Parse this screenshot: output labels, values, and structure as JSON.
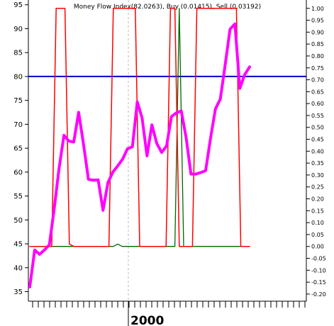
{
  "chart_data": {
    "type": "line",
    "title": "Money Flow Index(82.0263), Buy (0.01415), Sell (0.03192)",
    "xlabel": "",
    "ylabel": "",
    "x_tick_label": "2000",
    "left_axis": {
      "range": [
        33,
        96
      ],
      "ticks": [
        35,
        40,
        45,
        50,
        55,
        60,
        65,
        70,
        75,
        80,
        85,
        90,
        95
      ]
    },
    "right_axis": {
      "range": [
        -0.23,
        1.035
      ],
      "ticks": [
        "1.00",
        "0.95",
        "0.90",
        "0.85",
        "0.80",
        "0.75",
        "0.70",
        "0.65",
        "0.60",
        "0.55",
        "0.50",
        "0.45",
        "0.40",
        "0.35",
        "0.30",
        "0.25",
        "0.20",
        "0.15",
        "0.10",
        "0.05",
        "0.00",
        "-0.05",
        "-0.10",
        "-0.15",
        "-0.20"
      ]
    },
    "grid": false,
    "reference_line": {
      "axis": "left",
      "value": 80,
      "color": "#0000cc"
    },
    "colors": {
      "mfi": "#ff00ff",
      "buy": "#ff0000",
      "sell": "#006600",
      "divider": "#bbbbbb"
    },
    "series": [
      {
        "name": "Money Flow Index",
        "axis": "left",
        "color": "#ff00ff",
        "values": [
          36.0,
          43.7,
          42.8,
          43.7,
          44.8,
          52.3,
          60.8,
          67.7,
          66.5,
          66.3,
          72.5,
          65.8,
          58.5,
          58.3,
          58.4,
          52.0,
          57.8,
          60.0,
          61.3,
          62.7,
          64.9,
          65.3,
          74.7,
          71.3,
          63.4,
          69.9,
          66.0,
          64.1,
          65.5,
          71.6,
          72.4,
          72.8,
          67.3,
          59.6,
          59.6,
          59.9,
          60.3,
          67.1,
          73.2,
          75.3,
          82.5,
          89.9,
          91.0,
          77.5,
          80.4,
          82.0
        ]
      },
      {
        "name": "Buy",
        "axis": "right",
        "color": "#ff0000",
        "values": [
          0.0,
          0.0,
          0.0,
          0.0,
          0.0,
          0.0,
          1.0,
          1.0,
          1.0,
          0.01,
          0.0,
          0.0,
          0.0,
          0.0,
          0.0,
          0.0,
          0.0,
          0.0,
          0.0,
          1.0,
          1.0,
          1.0,
          1.0,
          1.0,
          1.0,
          0.0,
          0.0,
          0.0,
          0.0,
          0.0,
          0.0,
          0.0,
          1.0,
          1.0,
          0.0,
          0.0,
          0.0,
          0.0,
          1.0,
          1.0,
          1.0,
          1.0,
          1.0,
          1.0,
          1.0,
          1.0,
          1.0,
          1.0,
          0.0,
          0.0,
          0.0
        ]
      },
      {
        "name": "Sell",
        "axis": "right",
        "color": "#006600",
        "values": [
          0.0,
          0.0,
          0.0,
          0.0,
          0.0,
          0.0,
          0.0,
          0.0,
          0.0,
          0.0,
          0.0,
          0.0,
          0.0,
          0.0,
          0.0,
          0.0,
          0.0,
          0.0,
          0.0,
          0.0,
          0.01,
          0.0,
          0.0,
          0.0,
          0.0,
          0.0,
          0.0,
          0.0,
          0.0,
          0.0,
          0.0,
          0.0,
          0.0,
          0.0,
          1.0,
          0.0,
          0.0,
          0.0,
          0.0,
          0.0,
          0.0,
          0.0,
          0.0,
          0.0,
          0.0,
          0.0,
          0.0,
          0.0,
          0.0,
          0.0,
          0.0
        ]
      }
    ]
  }
}
